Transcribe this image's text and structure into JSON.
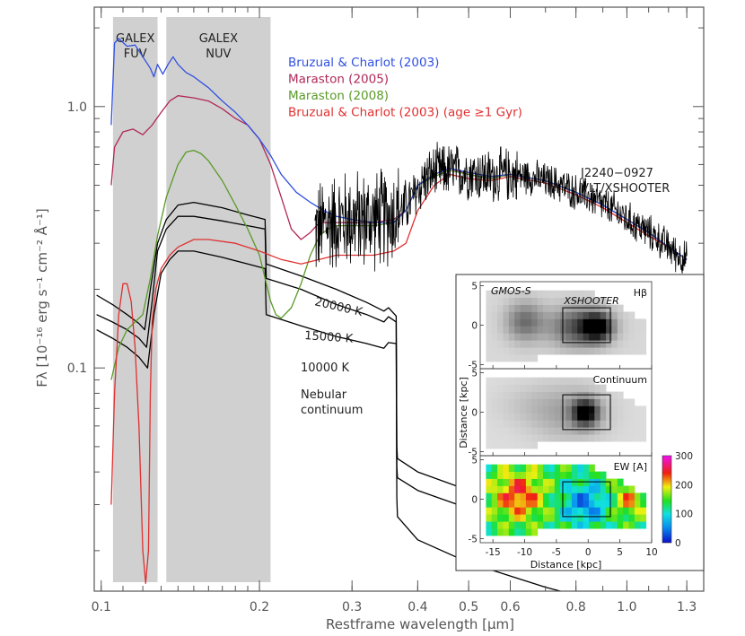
{
  "chart_data": {
    "type": "line",
    "xlabel": "Restframe wavelength [μm]",
    "ylabel": "Fλ [10⁻¹⁶ erg s⁻¹ cm⁻² Å⁻¹]",
    "xscale": "log",
    "yscale": "log",
    "xlim": [
      0.097,
      1.4
    ],
    "ylim": [
      0.014,
      2.4
    ],
    "x_ticks": [
      "0.1",
      "0.2",
      "0.3",
      "0.4",
      "0.5",
      "0.6",
      "0.8",
      "1.0",
      "1.3"
    ],
    "y_ticks": [
      "0.1",
      "1.0"
    ],
    "bands": [
      {
        "label_top": "GALEX",
        "label_bottom": "FUV",
        "range": [
          0.1053,
          0.128
        ]
      },
      {
        "label_top": "GALEX",
        "label_bottom": "NUV",
        "range": [
          0.133,
          0.21
        ]
      }
    ],
    "legend_placement": "top-center",
    "series": [
      {
        "name": "Bruzual & Charlot (2003)",
        "color": "#3050e0",
        "x": [
          0.1045,
          0.106,
          0.108,
          0.112,
          0.116,
          0.12,
          0.124,
          0.126,
          0.128,
          0.131,
          0.134,
          0.137,
          0.14,
          0.145,
          0.15,
          0.16,
          0.17,
          0.18,
          0.19,
          0.2,
          0.21,
          0.22,
          0.235,
          0.25,
          0.265,
          0.28,
          0.3,
          0.33,
          0.36,
          0.38,
          0.4,
          0.43,
          0.46,
          0.5,
          0.55,
          0.6,
          0.7,
          0.8,
          0.9,
          1.0,
          1.1,
          1.2,
          1.3
        ],
        "y": [
          0.85,
          1.75,
          1.82,
          1.7,
          1.72,
          1.55,
          1.4,
          1.3,
          1.45,
          1.33,
          1.45,
          1.55,
          1.45,
          1.35,
          1.3,
          1.18,
          1.05,
          0.95,
          0.85,
          0.75,
          0.65,
          0.55,
          0.47,
          0.43,
          0.4,
          0.38,
          0.37,
          0.36,
          0.36,
          0.4,
          0.5,
          0.55,
          0.58,
          0.56,
          0.54,
          0.55,
          0.52,
          0.47,
          0.42,
          0.37,
          0.33,
          0.29,
          0.26
        ]
      },
      {
        "name": "Maraston (2005)",
        "color": "#b02858",
        "x": [
          0.1045,
          0.106,
          0.11,
          0.115,
          0.12,
          0.125,
          0.13,
          0.135,
          0.14,
          0.15,
          0.16,
          0.17,
          0.18,
          0.19,
          0.2,
          0.21,
          0.22,
          0.23,
          0.24,
          0.25,
          0.26,
          0.28,
          0.3,
          0.33,
          0.36,
          0.38,
          0.4,
          0.43,
          0.46,
          0.5,
          0.55,
          0.6,
          0.7,
          0.8,
          0.9,
          1.0,
          1.1,
          1.2,
          1.3
        ],
        "y": [
          0.5,
          0.7,
          0.8,
          0.82,
          0.78,
          0.85,
          0.95,
          1.05,
          1.1,
          1.08,
          1.05,
          0.98,
          0.9,
          0.85,
          0.75,
          0.6,
          0.45,
          0.34,
          0.31,
          0.33,
          0.36,
          0.36,
          0.36,
          0.36,
          0.37,
          0.4,
          0.5,
          0.55,
          0.58,
          0.55,
          0.53,
          0.55,
          0.52,
          0.47,
          0.42,
          0.37,
          0.33,
          0.29,
          0.26
        ]
      },
      {
        "name": "Maraston (2008)",
        "color": "#5a9a28",
        "x": [
          0.1045,
          0.108,
          0.112,
          0.116,
          0.12,
          0.124,
          0.128,
          0.133,
          0.14,
          0.145,
          0.15,
          0.155,
          0.16,
          0.17,
          0.18,
          0.19,
          0.2,
          0.205,
          0.21,
          0.215,
          0.22,
          0.23,
          0.24,
          0.25,
          0.26,
          0.27,
          0.28,
          0.3,
          0.33,
          0.36,
          0.38,
          0.4,
          0.43,
          0.46,
          0.5,
          0.55,
          0.6,
          0.7,
          0.8,
          0.9,
          1.0,
          1.1,
          1.2,
          1.3
        ],
        "y": [
          0.09,
          0.12,
          0.14,
          0.15,
          0.16,
          0.22,
          0.32,
          0.45,
          0.6,
          0.67,
          0.68,
          0.66,
          0.62,
          0.52,
          0.42,
          0.34,
          0.27,
          0.22,
          0.18,
          0.16,
          0.155,
          0.17,
          0.21,
          0.27,
          0.32,
          0.34,
          0.35,
          0.35,
          0.35,
          0.36,
          0.4,
          0.5,
          0.54,
          0.57,
          0.55,
          0.53,
          0.55,
          0.52,
          0.47,
          0.42,
          0.37,
          0.33,
          0.29,
          0.26
        ]
      },
      {
        "name": "Bruzual & Charlot (2003) (age ≥1 Gyr)",
        "color": "#e03030",
        "x": [
          0.1045,
          0.106,
          0.108,
          0.11,
          0.112,
          0.114,
          0.116,
          0.118,
          0.12,
          0.1215,
          0.123,
          0.124,
          0.125,
          0.127,
          0.13,
          0.135,
          0.14,
          0.15,
          0.16,
          0.18,
          0.2,
          0.22,
          0.24,
          0.26,
          0.28,
          0.3,
          0.33,
          0.36,
          0.38,
          0.4,
          0.43,
          0.46,
          0.5,
          0.55,
          0.6,
          0.7,
          0.8,
          0.9,
          1.0,
          1.1,
          1.2,
          1.3
        ],
        "y": [
          0.03,
          0.08,
          0.16,
          0.21,
          0.21,
          0.18,
          0.12,
          0.06,
          0.02,
          0.015,
          0.02,
          0.08,
          0.15,
          0.2,
          0.24,
          0.27,
          0.29,
          0.31,
          0.31,
          0.3,
          0.28,
          0.26,
          0.25,
          0.26,
          0.27,
          0.27,
          0.27,
          0.28,
          0.3,
          0.4,
          0.5,
          0.55,
          0.53,
          0.52,
          0.54,
          0.51,
          0.46,
          0.41,
          0.36,
          0.32,
          0.29,
          0.26
        ]
      },
      {
        "name": "J2240-0927 VLT/XSHOOTER",
        "color": "#000000",
        "noisy": true,
        "x": [
          0.255,
          0.27,
          0.29,
          0.31,
          0.33,
          0.35,
          0.37,
          0.39,
          0.41,
          0.43,
          0.46,
          0.5,
          0.55,
          0.6,
          0.65,
          0.7,
          0.75,
          0.8,
          0.85,
          0.9,
          0.95,
          1.0,
          1.05,
          1.1,
          1.15,
          1.2,
          1.25,
          1.3
        ],
        "y": [
          0.33,
          0.36,
          0.37,
          0.37,
          0.37,
          0.38,
          0.4,
          0.44,
          0.52,
          0.56,
          0.57,
          0.56,
          0.54,
          0.55,
          0.54,
          0.52,
          0.5,
          0.47,
          0.45,
          0.42,
          0.4,
          0.37,
          0.35,
          0.33,
          0.31,
          0.29,
          0.27,
          0.26
        ]
      },
      {
        "name": "20000 K",
        "color": "#000000",
        "x": [
          0.098,
          0.105,
          0.112,
          0.118,
          0.121,
          0.124,
          0.128,
          0.133,
          0.14,
          0.15,
          0.17,
          0.19,
          0.205,
          0.206,
          0.24,
          0.28,
          0.32,
          0.345,
          0.352,
          0.364,
          0.365,
          0.366,
          0.4,
          0.5,
          0.6,
          0.7,
          0.8,
          1.3
        ],
        "y": [
          0.19,
          0.175,
          0.16,
          0.148,
          0.14,
          0.2,
          0.3,
          0.37,
          0.42,
          0.43,
          0.41,
          0.385,
          0.37,
          0.25,
          0.225,
          0.2,
          0.178,
          0.165,
          0.17,
          0.158,
          0.05,
          0.045,
          0.04,
          0.034,
          0.03,
          0.027,
          0.025,
          0.02
        ]
      },
      {
        "name": "15000 K",
        "color": "#000000",
        "x": [
          0.098,
          0.105,
          0.112,
          0.118,
          0.122,
          0.125,
          0.128,
          0.133,
          0.14,
          0.15,
          0.17,
          0.19,
          0.205,
          0.206,
          0.24,
          0.28,
          0.32,
          0.345,
          0.352,
          0.364,
          0.365,
          0.366,
          0.4,
          0.5,
          0.6,
          0.7,
          0.8,
          1.3
        ],
        "y": [
          0.16,
          0.15,
          0.14,
          0.13,
          0.12,
          0.18,
          0.28,
          0.34,
          0.38,
          0.38,
          0.365,
          0.35,
          0.34,
          0.22,
          0.2,
          0.175,
          0.16,
          0.15,
          0.157,
          0.15,
          0.042,
          0.038,
          0.034,
          0.029,
          0.026,
          0.023,
          0.021,
          0.018
        ]
      },
      {
        "name": "10000 K",
        "color": "#000000",
        "x": [
          0.098,
          0.105,
          0.112,
          0.118,
          0.1225,
          0.126,
          0.13,
          0.135,
          0.14,
          0.15,
          0.17,
          0.19,
          0.205,
          0.206,
          0.24,
          0.28,
          0.32,
          0.345,
          0.352,
          0.364,
          0.365,
          0.366,
          0.4,
          0.5,
          0.6,
          0.7,
          0.8,
          1.3
        ],
        "y": [
          0.14,
          0.13,
          0.12,
          0.11,
          0.1,
          0.16,
          0.23,
          0.26,
          0.28,
          0.28,
          0.265,
          0.25,
          0.24,
          0.16,
          0.145,
          0.132,
          0.124,
          0.119,
          0.125,
          0.124,
          0.032,
          0.027,
          0.022,
          0.018,
          0.016,
          0.0145,
          0.0135,
          0.012
        ]
      }
    ],
    "legend": [
      "Bruzual & Charlot (2003)",
      "Maraston (2005)",
      "Maraston (2008)",
      "Bruzual & Charlot (2003) (age ≥1 Gyr)"
    ],
    "annotations": {
      "object": [
        "J2240−0927",
        "VLT/XSHOOTER"
      ],
      "temp_20000": "20000 K",
      "temp_15000": "15000 K",
      "temp_10000": "10000 K",
      "nebular": [
        "Nebular",
        "continuum"
      ]
    },
    "inset": {
      "type": "heatmap",
      "xlabel": "Distance [kpc]",
      "ylabel": "Distance [kpc]",
      "x_ticks": [
        "-15",
        "-10",
        "-5",
        "0",
        "5",
        "10"
      ],
      "y_ticks": [
        "-5",
        "0",
        "5"
      ],
      "xlim": [
        -17,
        10
      ],
      "ylim": [
        -5.5,
        5.5
      ],
      "aperture": {
        "x": [
          -4,
          3.5
        ],
        "y": [
          -2.2,
          2.2
        ]
      },
      "panels": [
        {
          "title": "Hβ",
          "instrument": "GMOS-S",
          "aperture_label": "XSHOOTER",
          "cmap": "grey"
        },
        {
          "title": "Continuum",
          "cmap": "grey"
        },
        {
          "title": "EW [A]",
          "cmap": "rainbow"
        }
      ],
      "colorbar": {
        "ticks": [
          "0",
          "100",
          "200",
          "300"
        ],
        "range": [
          0,
          300
        ]
      }
    }
  }
}
